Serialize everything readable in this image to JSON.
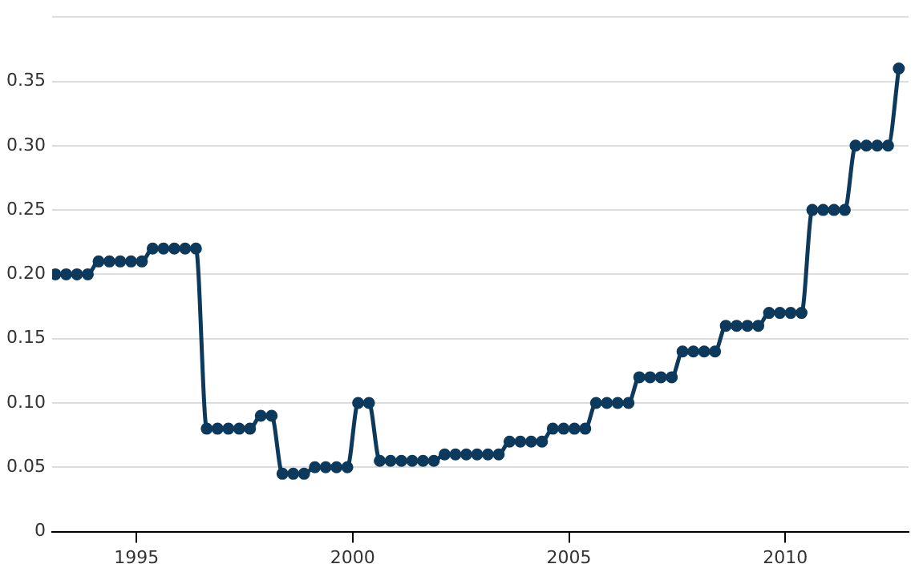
{
  "chart_data": {
    "type": "line",
    "color": "#0d3a5c",
    "marker": "circle",
    "grid": "y",
    "legend": false,
    "x": [
      1993.125,
      1993.375,
      1993.625,
      1993.875,
      1994.125,
      1994.375,
      1994.625,
      1994.875,
      1995.125,
      1995.375,
      1995.625,
      1995.875,
      1996.125,
      1996.375,
      1996.625,
      1996.875,
      1997.125,
      1997.375,
      1997.625,
      1997.875,
      1998.125,
      1998.375,
      1998.625,
      1998.875,
      1999.125,
      1999.375,
      1999.625,
      1999.875,
      2000.125,
      2000.375,
      2000.625,
      2000.875,
      2001.125,
      2001.375,
      2001.625,
      2001.875,
      2002.125,
      2002.375,
      2002.625,
      2002.875,
      2003.125,
      2003.375,
      2003.625,
      2003.875,
      2004.125,
      2004.375,
      2004.625,
      2004.875,
      2005.125,
      2005.375,
      2005.625,
      2005.875,
      2006.125,
      2006.375,
      2006.625,
      2006.875,
      2007.125,
      2007.375,
      2007.625,
      2007.875,
      2008.125,
      2008.375,
      2008.625,
      2008.875,
      2009.125,
      2009.375,
      2009.625,
      2009.875,
      2010.125,
      2010.375,
      2010.625,
      2010.875,
      2011.125,
      2011.375,
      2011.625,
      2011.875,
      2012.125,
      2012.375,
      2012.625
    ],
    "values": [
      0.2,
      0.2,
      0.2,
      0.2,
      0.21,
      0.21,
      0.21,
      0.21,
      0.21,
      0.22,
      0.22,
      0.22,
      0.22,
      0.22,
      0.08,
      0.08,
      0.08,
      0.08,
      0.08,
      0.09,
      0.09,
      0.045,
      0.045,
      0.045,
      0.05,
      0.05,
      0.05,
      0.05,
      0.1,
      0.1,
      0.055,
      0.055,
      0.055,
      0.055,
      0.055,
      0.055,
      0.06,
      0.06,
      0.06,
      0.06,
      0.06,
      0.06,
      0.07,
      0.07,
      0.07,
      0.07,
      0.08,
      0.08,
      0.08,
      0.08,
      0.1,
      0.1,
      0.1,
      0.1,
      0.12,
      0.12,
      0.12,
      0.12,
      0.14,
      0.14,
      0.14,
      0.14,
      0.16,
      0.16,
      0.16,
      0.16,
      0.17,
      0.17,
      0.17,
      0.17,
      0.25,
      0.25,
      0.25,
      0.25,
      0.3,
      0.3,
      0.3,
      0.3,
      0.36
    ],
    "xlim": [
      1993.05,
      2012.85
    ],
    "xticks": [
      1995,
      2000,
      2005,
      2010
    ],
    "ylim": [
      0,
      0.4
    ],
    "yticks": [
      0,
      0.05,
      {
        "value": 0.1,
        "label": "0.10"
      },
      0.15,
      {
        "value": 0.2,
        "label": "0.20"
      },
      0.25,
      {
        "value": 0.3,
        "label": "0.30"
      },
      0.35,
      {
        "value": 0.4,
        "label": null
      }
    ]
  }
}
